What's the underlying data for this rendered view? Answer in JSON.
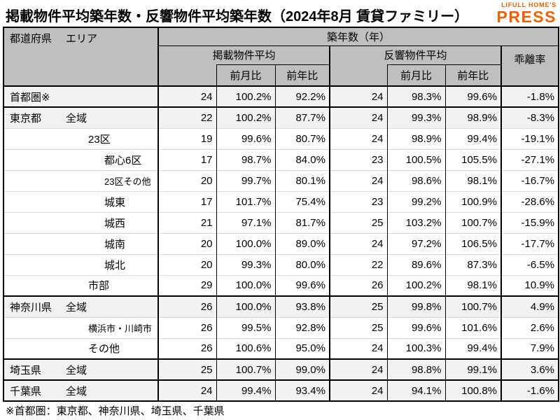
{
  "title": "掲載物件平均築年数・反響物件平均築年数（2024年8月 賃貸ファミリー）",
  "logo": {
    "line1": "LIFULL HOME'S",
    "line2": "PRESS"
  },
  "colors": {
    "logo_orange": "#ED6103",
    "header_bg": "#bfbfbf",
    "shaded_row_bg": "#f2f2f2",
    "border": "#000000"
  },
  "table": {
    "header": {
      "prefecture": "都道府県",
      "area": "エリア",
      "age_group": "築年数（年）",
      "listed_group": "掲載物件平均",
      "inquiry_group": "反響物件平均",
      "mom": "前月比",
      "yoy": "前年比",
      "deviation": "乖離率"
    }
  },
  "footnote": "※首都圏：東京都、神奈川県、埼玉県、千葉県",
  "chart_data": {
    "type": "table",
    "title": "掲載物件平均築年数・反響物件平均築年数（2024年8月 賃貸ファミリー）",
    "columns": [
      "都道府県・エリア",
      "掲載物件平均",
      "掲載前月比",
      "掲載前年比",
      "反響物件平均",
      "反響前月比",
      "反響前年比",
      "乖離率"
    ],
    "rows": [
      {
        "prefecture": "首都圏※",
        "area": "",
        "indent": 0,
        "shaded": true,
        "group_start": true,
        "small_font": false,
        "values": [
          "24",
          "100.2%",
          "92.2%",
          "24",
          "98.3%",
          "99.6%",
          "-1.8%"
        ]
      },
      {
        "prefecture": "東京都",
        "area": "全域",
        "indent": 1,
        "shaded": true,
        "group_start": true,
        "small_font": false,
        "values": [
          "22",
          "100.2%",
          "87.7%",
          "24",
          "99.3%",
          "98.9%",
          "-8.3%"
        ]
      },
      {
        "prefecture": "",
        "area": "23区",
        "indent": 2,
        "shaded": false,
        "group_start": false,
        "small_font": false,
        "values": [
          "19",
          "99.6%",
          "80.7%",
          "24",
          "98.9%",
          "99.4%",
          "-19.1%"
        ]
      },
      {
        "prefecture": "",
        "area": "都心6区",
        "indent": 3,
        "shaded": false,
        "group_start": false,
        "small_font": false,
        "values": [
          "17",
          "98.7%",
          "84.0%",
          "23",
          "100.5%",
          "105.5%",
          "-27.1%"
        ]
      },
      {
        "prefecture": "",
        "area": "23区その他",
        "indent": 3,
        "shaded": false,
        "group_start": false,
        "small_font": true,
        "values": [
          "20",
          "99.7%",
          "80.1%",
          "24",
          "98.6%",
          "98.1%",
          "-16.7%"
        ]
      },
      {
        "prefecture": "",
        "area": "城東",
        "indent": 3,
        "shaded": false,
        "group_start": false,
        "small_font": false,
        "values": [
          "17",
          "101.7%",
          "75.4%",
          "23",
          "99.2%",
          "100.9%",
          "-28.6%"
        ]
      },
      {
        "prefecture": "",
        "area": "城西",
        "indent": 3,
        "shaded": false,
        "group_start": false,
        "small_font": false,
        "values": [
          "21",
          "97.1%",
          "81.7%",
          "25",
          "103.2%",
          "100.7%",
          "-15.9%"
        ]
      },
      {
        "prefecture": "",
        "area": "城南",
        "indent": 3,
        "shaded": false,
        "group_start": false,
        "small_font": false,
        "values": [
          "20",
          "100.0%",
          "89.0%",
          "24",
          "97.2%",
          "106.5%",
          "-17.7%"
        ]
      },
      {
        "prefecture": "",
        "area": "城北",
        "indent": 3,
        "shaded": false,
        "group_start": false,
        "small_font": false,
        "values": [
          "20",
          "99.3%",
          "80.0%",
          "22",
          "89.6%",
          "87.3%",
          "-6.5%"
        ]
      },
      {
        "prefecture": "",
        "area": "市部",
        "indent": 2,
        "shaded": false,
        "group_start": false,
        "small_font": false,
        "values": [
          "29",
          "100.0%",
          "99.6%",
          "26",
          "100.2%",
          "98.1%",
          "10.9%"
        ]
      },
      {
        "prefecture": "神奈川県",
        "area": "全域",
        "indent": 1,
        "shaded": true,
        "group_start": true,
        "small_font": false,
        "values": [
          "26",
          "100.0%",
          "93.8%",
          "25",
          "99.8%",
          "100.7%",
          "4.9%"
        ]
      },
      {
        "prefecture": "",
        "area": "横浜市・川崎市",
        "indent": 2,
        "shaded": false,
        "group_start": false,
        "small_font": true,
        "values": [
          "26",
          "99.5%",
          "92.8%",
          "25",
          "99.6%",
          "101.6%",
          "2.6%"
        ]
      },
      {
        "prefecture": "",
        "area": "その他",
        "indent": 2,
        "shaded": false,
        "group_start": false,
        "small_font": false,
        "values": [
          "26",
          "100.6%",
          "95.0%",
          "24",
          "100.3%",
          "99.4%",
          "7.9%"
        ]
      },
      {
        "prefecture": "埼玉県",
        "area": "全域",
        "indent": 1,
        "shaded": true,
        "group_start": true,
        "small_font": false,
        "values": [
          "25",
          "100.7%",
          "99.0%",
          "24",
          "98.8%",
          "99.1%",
          "3.6%"
        ]
      },
      {
        "prefecture": "千葉県",
        "area": "全域",
        "indent": 1,
        "shaded": true,
        "group_start": true,
        "small_font": false,
        "values": [
          "24",
          "99.4%",
          "93.4%",
          "24",
          "94.1%",
          "100.8%",
          "-1.6%"
        ]
      }
    ]
  }
}
